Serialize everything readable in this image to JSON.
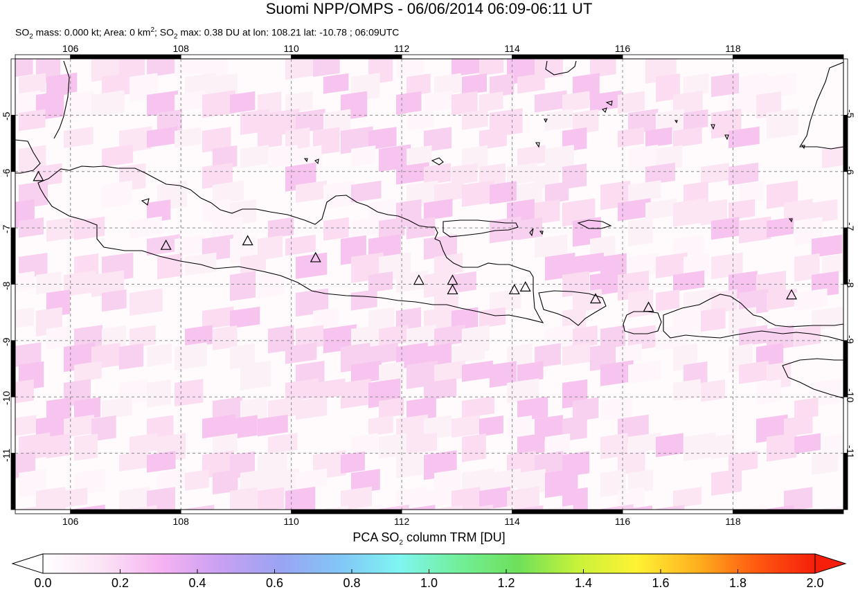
{
  "header": {
    "title": "Suomi NPP/OMPS - 06/06/2014 06:09-06:11 UT",
    "subtitle_parts": {
      "p1": "SO",
      "s1": "2",
      "p2": " mass: 0.000 kt; Area: 0 km",
      "s2": "2",
      "p3": "; SO",
      "s3": "2",
      "p4": " max: 0.38 DU at lon: 108.21 lat: -10.78 ; 06:09UTC"
    }
  },
  "map": {
    "lon_range": [
      105,
      120
    ],
    "lat_range": [
      -12,
      -4
    ],
    "lon_ticks": [
      "106",
      "108",
      "110",
      "112",
      "114",
      "116",
      "118"
    ],
    "lat_ticks": [
      "-5",
      "-6",
      "-7",
      "-8",
      "-9",
      "-10",
      "-11"
    ],
    "grid": true,
    "volcano_marker": "triangle-icon",
    "volcanoes": [
      {
        "lon": 105.42,
        "lat": -6.1
      },
      {
        "lon": 107.73,
        "lat": -7.32
      },
      {
        "lon": 109.21,
        "lat": -7.24
      },
      {
        "lon": 110.44,
        "lat": -7.54
      },
      {
        "lon": 112.31,
        "lat": -7.94
      },
      {
        "lon": 112.92,
        "lat": -7.94
      },
      {
        "lon": 112.92,
        "lat": -8.11
      },
      {
        "lon": 114.04,
        "lat": -8.11
      },
      {
        "lon": 114.24,
        "lat": -8.06
      },
      {
        "lon": 115.51,
        "lat": -8.27
      },
      {
        "lon": 116.47,
        "lat": -8.42
      },
      {
        "lon": 119.06,
        "lat": -8.2
      }
    ]
  },
  "colorbar": {
    "label_parts": {
      "p1": "PCA SO",
      "s1": "2",
      "p2": " column TRM [DU]"
    },
    "ticks": [
      "0.0",
      "0.2",
      "0.4",
      "0.6",
      "0.8",
      "1.0",
      "1.2",
      "1.4",
      "1.6",
      "1.8",
      "2.0"
    ],
    "range": [
      0.0,
      2.0
    ],
    "colors": [
      "#ffffff",
      "#fbe3f5",
      "#f6b2f2",
      "#c8a0f2",
      "#9aa4f2",
      "#82c6f6",
      "#7ff5f1",
      "#72ef9a",
      "#6ee05a",
      "#c8f23a",
      "#fff233",
      "#ffb11f",
      "#ff5a10",
      "#f51f0b"
    ]
  }
}
